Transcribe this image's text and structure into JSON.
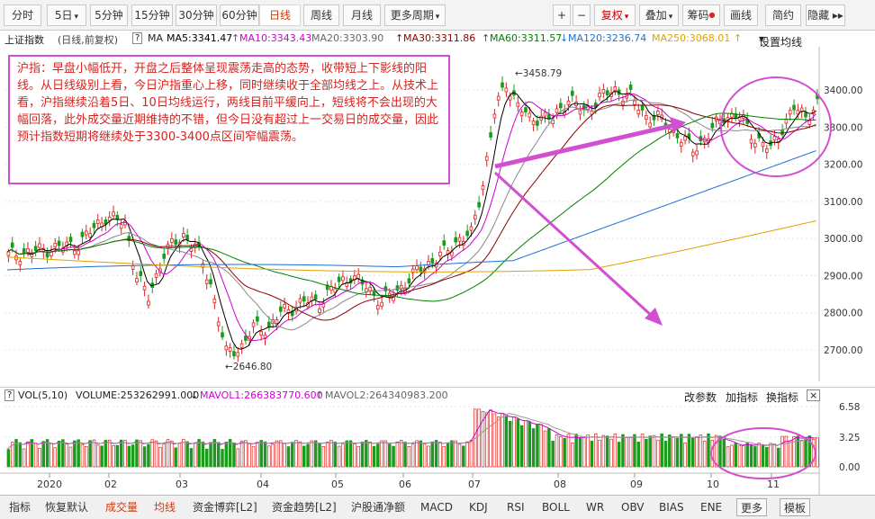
{
  "toolbar": {
    "left": [
      "分时",
      "5日",
      "5分钟",
      "15分钟",
      "30分钟",
      "60分钟",
      "日线",
      "周线",
      "月线",
      "更多周期"
    ],
    "active": "日线",
    "right": [
      "+",
      "−",
      "复权",
      "叠加",
      "筹码",
      "画线",
      "简约",
      "隐藏 ▸▸"
    ]
  },
  "info": {
    "index": "上证指数",
    "period": "(日线,前复权)",
    "help": "?",
    "ma_label": "MA",
    "ma5": "MA5:3341.47",
    "ma10": "MA10:3343.43",
    "ma20": "MA20:3303.90",
    "ma30": "MA30:3311.86",
    "ma60": "MA60:3311.57",
    "ma120": "MA120:3236.74",
    "ma250": "MA250:3068.01",
    "setting": "设置均线"
  },
  "annotation": "沪指：早盘小幅低开，开盘之后整体呈现震荡走高的态势，收带短上下影线的阳线。从日线级别上看，今日沪指重心上移，同时继续收于全部均线之上。从技术上看，沪指继续沿着5日、10日均线运行，两线目前平缓向上，短线将不会出现的大幅回落，此外成交量近期维持的不错，但今日没有超过上一交易日的成交量，因此预计指数短期将继续处于3300-3400点区间窄幅震荡。",
  "price_axis": [
    "3400.00",
    "3300.00",
    "3200.00",
    "3100.00",
    "3000.00",
    "2900.00",
    "2800.00",
    "2700.00"
  ],
  "marks": {
    "high": "3458.79",
    "low": "2646.80"
  },
  "vol": {
    "help": "?",
    "name": "VOL(5,10)",
    "volume": "VOLUME:253262991.000",
    "mavol1": "MAVOL1:266383770.600",
    "mavol2": "MAVOL2:264340983.200",
    "btns": [
      "改参数",
      "加指标",
      "换指标"
    ],
    "close": "×"
  },
  "vol_axis": [
    "6.58",
    "3.25",
    "0.00"
  ],
  "x_axis": [
    "2020",
    "02",
    "03",
    "04",
    "05",
    "06",
    "07",
    "08",
    "09",
    "10",
    "11"
  ],
  "bottom": [
    "指标",
    "恢复默认",
    "成交量",
    "均线",
    "资金博弈[L2]",
    "资金趋势[L2]",
    "沪股通净额",
    "MACD",
    "KDJ",
    "RSI",
    "BOLL",
    "WR",
    "OBV",
    "BIAS",
    "ENE",
    "更多",
    "模板"
  ],
  "bottom_selected": [
    "成交量",
    "均线"
  ],
  "colors": {
    "up": "#e0231f",
    "down": "#1d9a1d",
    "annot": "#d14fd1",
    "ma5": "#000000",
    "ma10": "#d000d0",
    "ma20": "#888888",
    "ma30": "#8b0000",
    "ma60": "#008000",
    "ma120": "#1f6fd1",
    "ma250": "#e0a000"
  }
}
